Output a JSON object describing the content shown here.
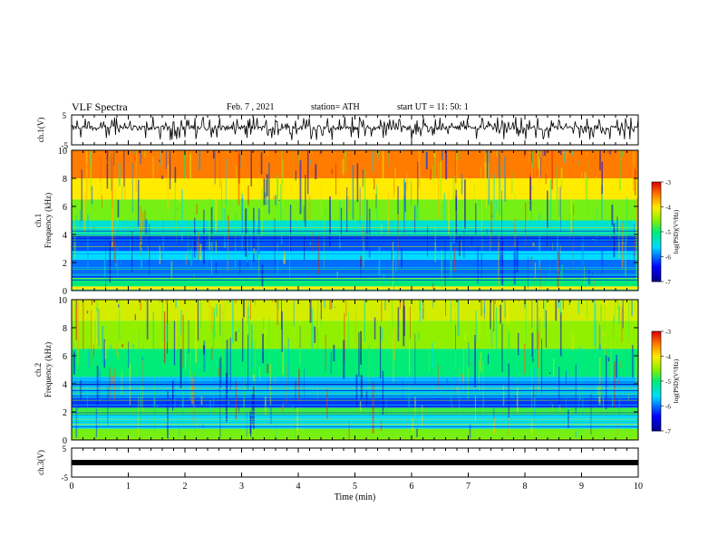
{
  "header": {
    "title": "VLF Spectra",
    "date": "Feb. 7 , 2021",
    "station": "station= ATH",
    "start": "start  UT =   11: 50: 1"
  },
  "chart_data": [
    {
      "type": "line",
      "ylabel": "ch.1(V)",
      "ylim": [
        -5,
        5
      ],
      "yticks": [
        "5",
        "-5"
      ],
      "xlim": [
        0,
        10
      ],
      "description_series": "dense noisy voltage trace, mostly between 0 and 1.5 V with spikes",
      "series": [
        {
          "values_range": [
            -3.5,
            4.5
          ],
          "typical": [
            0,
            1.5
          ],
          "color": "#000000"
        }
      ]
    },
    {
      "type": "heatmap",
      "ylabel": "ch.1\nFrequency (kHz)",
      "ylim": [
        0,
        10
      ],
      "yticks": [
        "0",
        "2",
        "4",
        "6",
        "8",
        "10"
      ],
      "xlim": [
        0,
        10
      ],
      "colorbar": {
        "label": "log(PSD)(V²/Hz)",
        "range": [
          -7,
          -3
        ],
        "ticks": [
          "-3",
          "-4",
          "-5",
          "-6",
          "-7"
        ]
      },
      "bands": [
        {
          "from": 0,
          "to": 0.3,
          "level": -4.0
        },
        {
          "from": 0.3,
          "to": 0.9,
          "level": -5.0
        },
        {
          "from": 0.9,
          "to": 2.2,
          "level": -6.0
        },
        {
          "from": 2.2,
          "to": 2.8,
          "level": -5.6
        },
        {
          "from": 2.8,
          "to": 4.0,
          "level": -6.1
        },
        {
          "from": 4.0,
          "to": 5.0,
          "level": -5.4
        },
        {
          "from": 5.0,
          "to": 6.5,
          "level": -4.6
        },
        {
          "from": 6.5,
          "to": 8.0,
          "level": -4.0
        },
        {
          "from": 8.0,
          "to": 10.0,
          "level": -3.5
        }
      ]
    },
    {
      "type": "heatmap",
      "ylabel": "ch.2\nFrequency (kHz)",
      "ylim": [
        0,
        10
      ],
      "yticks": [
        "0",
        "2",
        "4",
        "6",
        "8",
        "10"
      ],
      "xlim": [
        0,
        10
      ],
      "colorbar": {
        "label": "log(PSD)(V²/Hz)",
        "range": [
          -7,
          -3
        ],
        "ticks": [
          "-3",
          "-4",
          "-5",
          "-6",
          "-7"
        ]
      },
      "bands": [
        {
          "from": 0,
          "to": 0.8,
          "level": -4.6
        },
        {
          "from": 0.8,
          "to": 1.8,
          "level": -5.6
        },
        {
          "from": 1.8,
          "to": 2.3,
          "level": -4.8
        },
        {
          "from": 2.3,
          "to": 3.0,
          "level": -6.2
        },
        {
          "from": 3.0,
          "to": 4.5,
          "level": -5.7
        },
        {
          "from": 4.5,
          "to": 6.5,
          "level": -5.0
        },
        {
          "from": 6.5,
          "to": 8.5,
          "level": -4.5
        },
        {
          "from": 8.5,
          "to": 10.0,
          "level": -4.2
        }
      ]
    },
    {
      "type": "line",
      "ylabel": "ch.3(V)",
      "ylim": [
        -5,
        5
      ],
      "yticks": [
        "5",
        "-5"
      ],
      "xlim": [
        0,
        10
      ],
      "xlabel": "Time  (min)",
      "xticks": [
        "0",
        "1",
        "2",
        "3",
        "4",
        "5",
        "6",
        "7",
        "8",
        "9",
        "10"
      ],
      "series": [
        {
          "constant": 0,
          "values_range": [
            -0.3,
            0.3
          ],
          "color": "#000000"
        }
      ]
    }
  ]
}
